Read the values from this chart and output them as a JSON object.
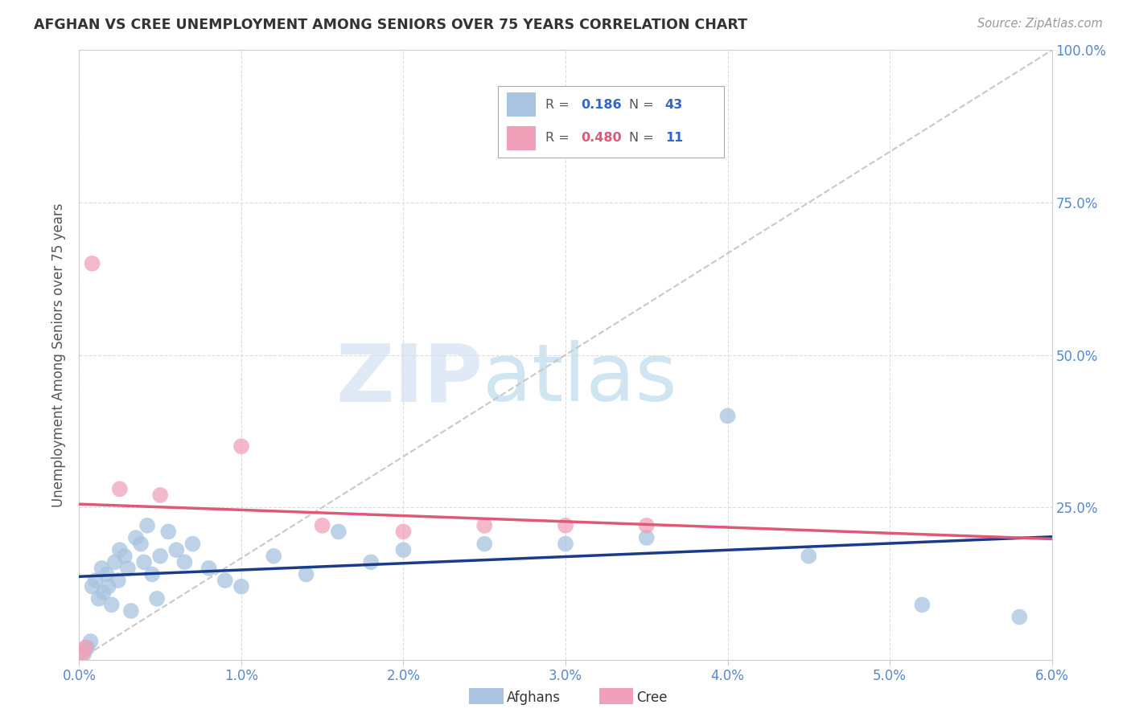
{
  "title": "AFGHAN VS CREE UNEMPLOYMENT AMONG SENIORS OVER 75 YEARS CORRELATION CHART",
  "source": "Source: ZipAtlas.com",
  "ylabel": "Unemployment Among Seniors over 75 years",
  "xlim": [
    0,
    6
  ],
  "ylim": [
    0,
    100
  ],
  "afghan_R": "0.186",
  "afghan_N": "43",
  "cree_R": "0.480",
  "cree_N": "11",
  "afghan_color": "#a8c4e0",
  "cree_color": "#f0a0b8",
  "afghan_line_color": "#1a3a8a",
  "cree_line_color": "#e05878",
  "diagonal_color": "#c8c8c8",
  "watermark_zip": "ZIP",
  "watermark_atlas": "atlas",
  "afghans_x": [
    0.03,
    0.05,
    0.07,
    0.08,
    0.1,
    0.12,
    0.14,
    0.15,
    0.17,
    0.18,
    0.2,
    0.22,
    0.24,
    0.25,
    0.28,
    0.3,
    0.32,
    0.35,
    0.38,
    0.4,
    0.42,
    0.45,
    0.48,
    0.5,
    0.55,
    0.6,
    0.65,
    0.7,
    0.8,
    0.9,
    1.0,
    1.2,
    1.4,
    1.6,
    1.8,
    2.0,
    2.5,
    3.0,
    3.5,
    4.0,
    4.5,
    5.2,
    5.8
  ],
  "afghans_y": [
    1,
    2,
    3,
    12,
    13,
    10,
    15,
    11,
    14,
    12,
    9,
    16,
    13,
    18,
    17,
    15,
    8,
    20,
    19,
    16,
    22,
    14,
    10,
    17,
    21,
    18,
    16,
    19,
    15,
    13,
    12,
    17,
    14,
    21,
    16,
    18,
    19,
    19,
    20,
    40,
    17,
    9,
    7
  ],
  "cree_x": [
    0.02,
    0.04,
    0.08,
    0.25,
    0.5,
    1.0,
    1.5,
    2.0,
    2.5,
    3.0,
    3.5
  ],
  "cree_y": [
    1,
    2,
    65,
    28,
    27,
    35,
    22,
    21,
    22,
    22,
    22
  ],
  "ytick_vals": [
    0,
    25,
    50,
    75,
    100
  ],
  "ytick_labels": [
    "",
    "25.0%",
    "50.0%",
    "75.0%",
    "100.0%"
  ],
  "xtick_vals": [
    0,
    1,
    2,
    3,
    4,
    5,
    6
  ],
  "xtick_labels": [
    "0.0%",
    "1.0%",
    "2.0%",
    "3.0%",
    "4.0%",
    "5.0%",
    "6.0%"
  ]
}
